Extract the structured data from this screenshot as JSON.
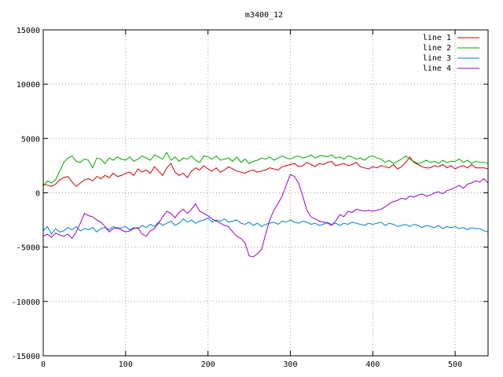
{
  "chart_data": {
    "type": "line",
    "title": "m3400_12",
    "xlabel": "",
    "ylabel": "",
    "xlim": [
      0,
      540
    ],
    "ylim": [
      -15000,
      15000
    ],
    "x_ticks": [
      0,
      100,
      200,
      300,
      400,
      500
    ],
    "y_ticks": [
      -15000,
      -10000,
      -5000,
      0,
      5000,
      10000,
      15000
    ],
    "grid": true,
    "legend_position": "top-right",
    "series": [
      {
        "name": "line 1",
        "color": "#cc0000",
        "x": [
          0,
          5,
          10,
          15,
          20,
          25,
          30,
          35,
          40,
          45,
          50,
          55,
          60,
          65,
          70,
          75,
          80,
          85,
          90,
          95,
          100,
          105,
          110,
          115,
          120,
          125,
          130,
          135,
          140,
          145,
          150,
          155,
          160,
          165,
          170,
          175,
          180,
          185,
          190,
          195,
          200,
          205,
          210,
          215,
          220,
          225,
          230,
          235,
          240,
          245,
          250,
          255,
          260,
          265,
          270,
          275,
          280,
          285,
          290,
          295,
          300,
          305,
          310,
          315,
          320,
          325,
          330,
          335,
          340,
          345,
          350,
          355,
          360,
          365,
          370,
          375,
          380,
          385,
          390,
          395,
          400,
          405,
          410,
          415,
          420,
          425,
          430,
          435,
          440,
          445,
          450,
          455,
          460,
          465,
          470,
          475,
          480,
          485,
          490,
          495,
          500,
          505,
          510,
          515,
          520,
          525,
          530,
          535,
          540
        ],
        "values": [
          800,
          700,
          600,
          800,
          1200,
          1400,
          1500,
          1000,
          600,
          900,
          1200,
          1300,
          1100,
          1500,
          1300,
          1600,
          1400,
          1800,
          1500,
          1600,
          1800,
          1900,
          1600,
          2200,
          1900,
          2100,
          1800,
          2400,
          2000,
          1600,
          2300,
          2700,
          1900,
          1600,
          1800,
          1400,
          2000,
          2300,
          2100,
          2500,
          2200,
          2000,
          2300,
          1900,
          2100,
          2400,
          2200,
          2000,
          1900,
          1800,
          2000,
          2100,
          1900,
          2000,
          2100,
          2300,
          2200,
          2100,
          2400,
          2500,
          2600,
          2700,
          2400,
          2500,
          2800,
          2600,
          2400,
          2700,
          2600,
          2800,
          2900,
          2500,
          2600,
          2700,
          2500,
          2600,
          2800,
          2400,
          2300,
          2200,
          2400,
          2300,
          2500,
          2400,
          2300,
          2600,
          2200,
          2400,
          2800,
          3300,
          2800,
          2600,
          2400,
          2300,
          2300,
          2500,
          2400,
          2600,
          2300,
          2500,
          2200,
          2400,
          2500,
          2300,
          2600,
          2300,
          2300,
          2300,
          2200
        ]
      },
      {
        "name": "line 2",
        "color": "#00aa00",
        "x": [
          0,
          5,
          10,
          15,
          20,
          25,
          30,
          35,
          40,
          45,
          50,
          55,
          60,
          65,
          70,
          75,
          80,
          85,
          90,
          95,
          100,
          105,
          110,
          115,
          120,
          125,
          130,
          135,
          140,
          145,
          150,
          155,
          160,
          165,
          170,
          175,
          180,
          185,
          190,
          195,
          200,
          205,
          210,
          215,
          220,
          225,
          230,
          235,
          240,
          245,
          250,
          255,
          260,
          265,
          270,
          275,
          280,
          285,
          290,
          295,
          300,
          305,
          310,
          315,
          320,
          325,
          330,
          335,
          340,
          345,
          350,
          355,
          360,
          365,
          370,
          375,
          380,
          385,
          390,
          395,
          400,
          405,
          410,
          415,
          420,
          425,
          430,
          435,
          440,
          445,
          450,
          455,
          460,
          465,
          470,
          475,
          480,
          485,
          490,
          495,
          500,
          505,
          510,
          515,
          520,
          525,
          530,
          535,
          540
        ],
        "values": [
          600,
          1100,
          900,
          1200,
          2000,
          2800,
          3200,
          3400,
          2900,
          2800,
          3100,
          3000,
          2300,
          3200,
          3100,
          2700,
          3200,
          3000,
          3300,
          3100,
          3000,
          3300,
          2900,
          3100,
          3400,
          3200,
          3000,
          3500,
          3300,
          3100,
          3700,
          3000,
          3300,
          2900,
          3200,
          3100,
          3400,
          3000,
          2800,
          3400,
          3300,
          3100,
          3400,
          3000,
          3100,
          3200,
          2900,
          3300,
          2800,
          3100,
          2700,
          2900,
          3000,
          3200,
          3100,
          3300,
          3000,
          3200,
          3400,
          3200,
          3100,
          3300,
          3400,
          3200,
          3300,
          3500,
          3200,
          3400,
          3400,
          3300,
          3500,
          3200,
          3300,
          3100,
          3400,
          3300,
          3100,
          3200,
          3000,
          3300,
          3400,
          3200,
          3100,
          2800,
          3000,
          2700,
          2900,
          3100,
          3400,
          3100,
          2900,
          2700,
          2800,
          3000,
          2800,
          2900,
          2700,
          3000,
          2800,
          2900,
          2900,
          3100,
          2800,
          3000,
          2700,
          2900,
          2800,
          2800,
          2700
        ]
      },
      {
        "name": "line 3",
        "color": "#0080cc",
        "x": [
          0,
          5,
          10,
          15,
          20,
          25,
          30,
          35,
          40,
          45,
          50,
          55,
          60,
          65,
          70,
          75,
          80,
          85,
          90,
          95,
          100,
          105,
          110,
          115,
          120,
          125,
          130,
          135,
          140,
          145,
          150,
          155,
          160,
          165,
          170,
          175,
          180,
          185,
          190,
          195,
          200,
          205,
          210,
          215,
          220,
          225,
          230,
          235,
          240,
          245,
          250,
          255,
          260,
          265,
          270,
          275,
          280,
          285,
          290,
          295,
          300,
          305,
          310,
          315,
          320,
          325,
          330,
          335,
          340,
          345,
          350,
          355,
          360,
          365,
          370,
          375,
          380,
          385,
          390,
          395,
          400,
          405,
          410,
          415,
          420,
          425,
          430,
          435,
          440,
          445,
          450,
          455,
          460,
          465,
          470,
          475,
          480,
          485,
          490,
          495,
          500,
          505,
          510,
          515,
          520,
          525,
          530,
          535,
          540
        ],
        "values": [
          -3500,
          -3100,
          -3800,
          -3300,
          -3600,
          -3500,
          -3200,
          -3400,
          -3100,
          -3500,
          -3300,
          -3400,
          -3200,
          -3600,
          -3300,
          -3200,
          -3400,
          -3100,
          -3300,
          -3200,
          -3100,
          -3400,
          -3200,
          -3300,
          -3000,
          -3200,
          -2900,
          -3100,
          -2700,
          -3000,
          -2800,
          -2600,
          -3000,
          -2800,
          -2400,
          -2700,
          -2500,
          -2800,
          -2600,
          -2500,
          -2300,
          -2700,
          -2500,
          -2600,
          -2400,
          -2700,
          -2600,
          -2500,
          -2800,
          -2900,
          -2700,
          -3000,
          -2800,
          -3100,
          -2900,
          -2800,
          -2700,
          -2900,
          -2600,
          -2700,
          -2500,
          -2700,
          -2800,
          -2600,
          -2700,
          -2900,
          -2800,
          -3000,
          -2900,
          -2700,
          -2900,
          -2800,
          -3000,
          -2800,
          -2900,
          -2700,
          -2800,
          -2900,
          -3000,
          -2800,
          -2900,
          -2800,
          -2700,
          -3000,
          -2800,
          -2900,
          -3100,
          -3000,
          -2900,
          -3100,
          -2900,
          -3000,
          -3200,
          -3000,
          -3100,
          -3200,
          -3000,
          -3300,
          -3100,
          -3200,
          -3100,
          -3300,
          -3200,
          -3400,
          -3200,
          -3300,
          -3300,
          -3500,
          -3600
        ]
      },
      {
        "name": "line 4",
        "color": "#9900cc",
        "x": [
          0,
          5,
          10,
          15,
          20,
          25,
          30,
          35,
          40,
          45,
          50,
          55,
          60,
          65,
          70,
          75,
          80,
          85,
          90,
          95,
          100,
          105,
          110,
          115,
          120,
          125,
          130,
          135,
          140,
          145,
          150,
          155,
          160,
          165,
          170,
          175,
          180,
          185,
          190,
          195,
          200,
          205,
          210,
          215,
          220,
          225,
          230,
          235,
          240,
          245,
          250,
          255,
          260,
          265,
          270,
          275,
          280,
          285,
          290,
          295,
          300,
          305,
          310,
          315,
          320,
          325,
          330,
          335,
          340,
          345,
          350,
          355,
          360,
          365,
          370,
          375,
          380,
          385,
          390,
          395,
          400,
          405,
          410,
          415,
          420,
          425,
          430,
          435,
          440,
          445,
          450,
          455,
          460,
          465,
          470,
          475,
          480,
          485,
          490,
          495,
          500,
          505,
          510,
          515,
          520,
          525,
          530,
          535,
          540
        ],
        "values": [
          -4000,
          -3800,
          -4100,
          -3700,
          -3900,
          -4000,
          -3800,
          -4200,
          -3600,
          -2800,
          -1900,
          -2100,
          -2200,
          -2500,
          -2700,
          -3100,
          -3600,
          -3300,
          -3200,
          -3400,
          -3600,
          -3500,
          -3300,
          -3200,
          -3800,
          -4000,
          -3500,
          -3300,
          -2800,
          -2200,
          -1700,
          -1900,
          -2300,
          -1800,
          -1500,
          -1900,
          -1500,
          -1000,
          -1700,
          -1900,
          -2100,
          -2400,
          -2600,
          -2800,
          -3000,
          -3100,
          -3600,
          -4000,
          -4200,
          -4600,
          -5800,
          -5900,
          -5600,
          -5200,
          -3800,
          -2500,
          -1600,
          -1000,
          -300,
          700,
          1700,
          1500,
          900,
          -300,
          -1600,
          -2200,
          -2400,
          -2600,
          -2700,
          -2800,
          -3000,
          -2600,
          -2000,
          -2200,
          -1700,
          -1800,
          -1500,
          -1600,
          -1700,
          -1600,
          -1700,
          -1600,
          -1500,
          -1300,
          -1000,
          -800,
          -700,
          -500,
          -600,
          -300,
          -400,
          -200,
          -100,
          -300,
          -200,
          0,
          100,
          -100,
          200,
          300,
          500,
          700,
          400,
          800,
          900,
          1100,
          1000,
          1300,
          900
        ]
      }
    ]
  }
}
